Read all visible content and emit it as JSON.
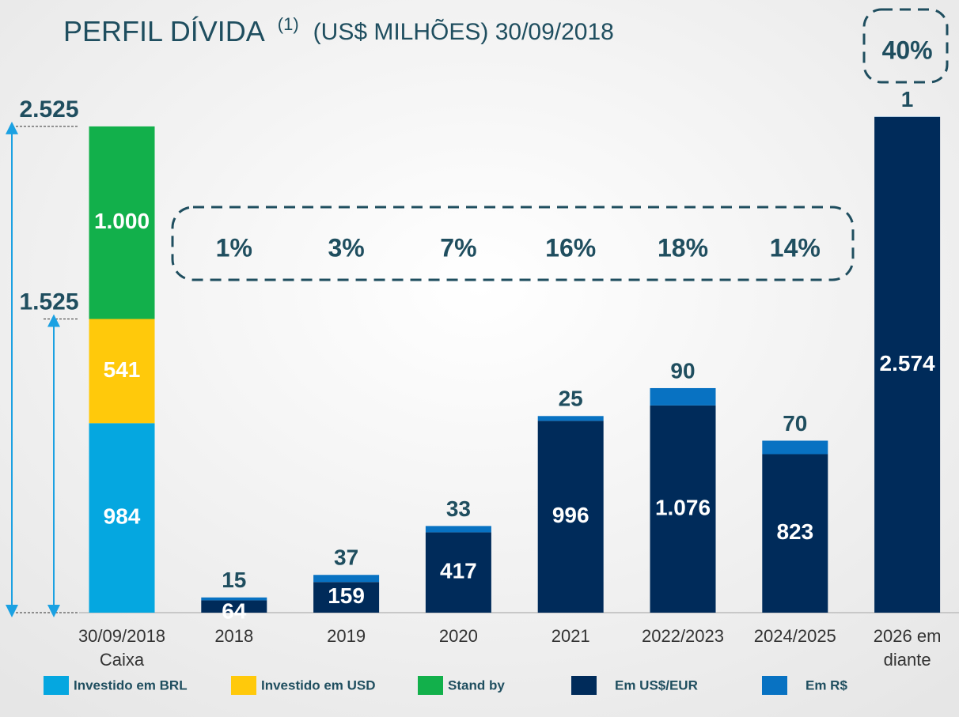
{
  "chart_data": {
    "type": "stacked_bar",
    "title": "PERFIL DÍVIDA",
    "title_note": "(1)",
    "subtitle": "(US$ MILHÕES) 30/09/2018",
    "categories": [
      [
        "30/09/2018",
        "Caixa"
      ],
      [
        "2018"
      ],
      [
        "2019"
      ],
      [
        "2020"
      ],
      [
        "2021"
      ],
      [
        "2022/2023"
      ],
      [
        "2024/2025"
      ],
      [
        "2026 em",
        "diante"
      ]
    ],
    "series": [
      {
        "name": "Investido em BRL",
        "color": "#05a7e0",
        "values": [
          984,
          null,
          null,
          null,
          null,
          null,
          null,
          null
        ],
        "value_labels": [
          "984",
          null,
          null,
          null,
          null,
          null,
          null,
          null
        ]
      },
      {
        "name": "Investido em USD",
        "color": "#ffc90b",
        "values": [
          541,
          null,
          null,
          null,
          null,
          null,
          null,
          null
        ],
        "value_labels": [
          "541",
          null,
          null,
          null,
          null,
          null,
          null,
          null
        ]
      },
      {
        "name": "Stand by",
        "color": "#12b04b",
        "values": [
          1000,
          null,
          null,
          null,
          null,
          null,
          null,
          null
        ],
        "value_labels": [
          "1.000",
          null,
          null,
          null,
          null,
          null,
          null,
          null
        ]
      },
      {
        "name": "Em US$/EUR",
        "color": "#002b5a",
        "values": [
          null,
          64,
          159,
          417,
          996,
          1076,
          823,
          2574
        ],
        "value_labels": [
          null,
          "64",
          "159",
          "417",
          "996",
          "1.076",
          "823",
          "2.574"
        ]
      },
      {
        "name": "Em R$",
        "color": "#0872c2",
        "values": [
          null,
          15,
          37,
          33,
          25,
          90,
          70,
          1
        ],
        "value_labels": [
          null,
          "15",
          "37",
          "33",
          "25",
          "90",
          "70",
          "1"
        ]
      }
    ],
    "ylim": [
      0,
      2800
    ],
    "brackets": [
      {
        "value": 2525,
        "label": "2.525"
      },
      {
        "value": 1525,
        "label": "1.525"
      }
    ],
    "share_labels": [
      null,
      "1%",
      "3%",
      "7%",
      "16%",
      "18%",
      "14%",
      "40%"
    ]
  }
}
